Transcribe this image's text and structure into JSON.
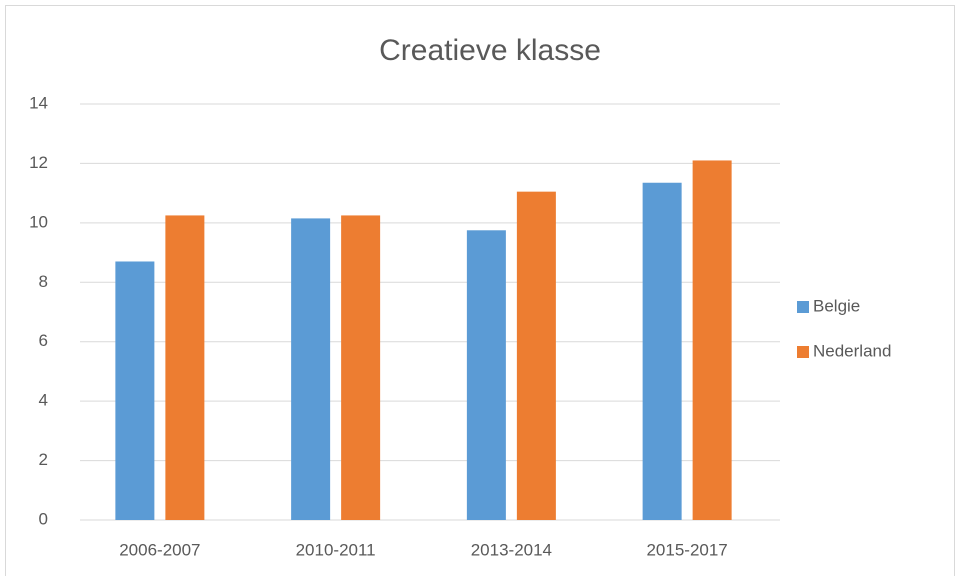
{
  "chart_data": {
    "type": "bar",
    "title": "Creatieve klasse",
    "categories": [
      "2006-2007",
      "2010-2011",
      "2013-2014",
      "2015-2017"
    ],
    "series": [
      {
        "name": "Belgie",
        "color": "#5b9bd5",
        "values": [
          8.7,
          10.15,
          9.75,
          11.35
        ]
      },
      {
        "name": "Nederland",
        "color": "#ed7d31",
        "values": [
          10.25,
          10.25,
          11.05,
          12.1
        ]
      }
    ],
    "ylim": [
      0,
      14
    ],
    "yticks": [
      0,
      2,
      4,
      6,
      8,
      10,
      12,
      14
    ],
    "grid": true,
    "legend": "right"
  }
}
